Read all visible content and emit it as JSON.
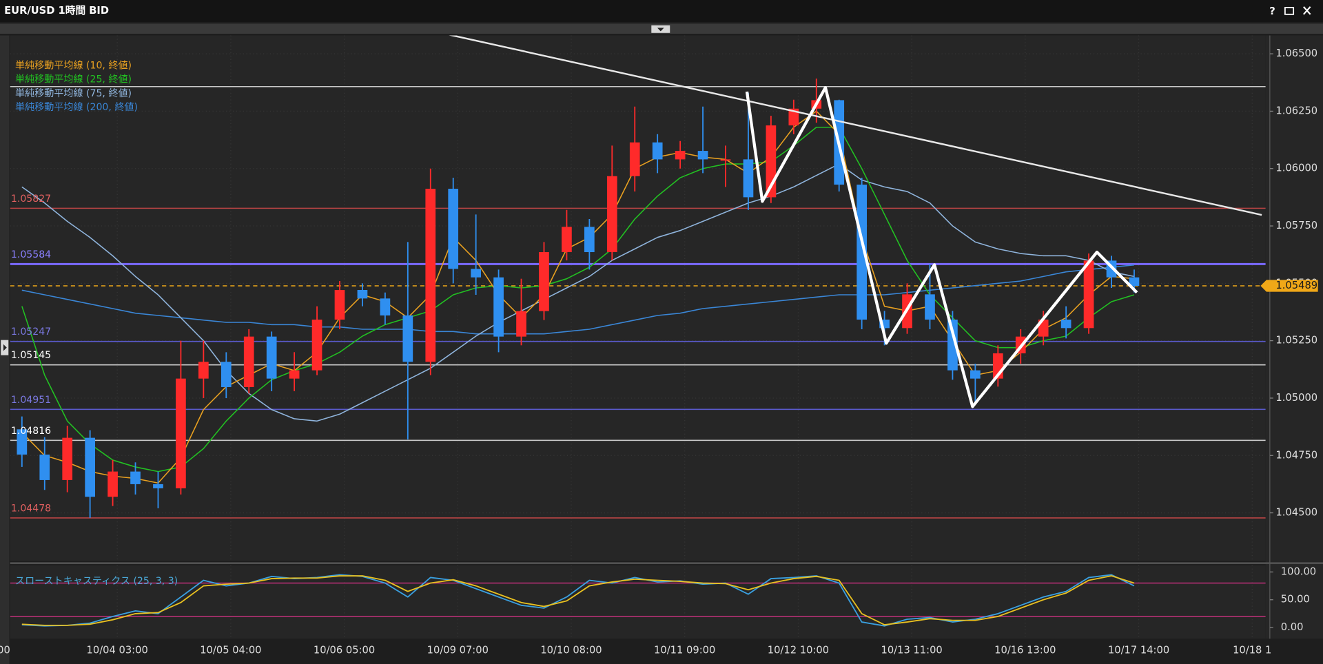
{
  "window_title": "EUR/USD 1時間 BID",
  "help_label": "?",
  "chart_data": [
    {
      "type": "candlestick",
      "xlim": [
        -0.6,
        275.4
      ],
      "ylim": [
        1.0429,
        1.0658
      ],
      "yticks": [
        {
          "value": 1.065,
          "label": "1.06500"
        },
        {
          "value": 1.0625,
          "label": "1.06250"
        },
        {
          "value": 1.06,
          "label": "1.06000"
        },
        {
          "value": 1.0575,
          "label": "1.05750"
        },
        {
          "value": 1.055,
          "label": "1.05500"
        },
        {
          "value": 1.0525,
          "label": "1.05250"
        },
        {
          "value": 1.05,
          "label": "1.05000"
        },
        {
          "value": 1.0475,
          "label": "1.04750"
        },
        {
          "value": 1.045,
          "label": "1.04500"
        }
      ],
      "candles": {
        "up_color": "#ff2a2a",
        "down_color": "#2f8ff0",
        "x": [
          2,
          7,
          12,
          17,
          22,
          27,
          32,
          37,
          42,
          47,
          52,
          57,
          62,
          67,
          72,
          77,
          82,
          87,
          92,
          97,
          102,
          107,
          112,
          117,
          122,
          127,
          132,
          137,
          142,
          147,
          152,
          157,
          162,
          167,
          172,
          177,
          182,
          187,
          192,
          197,
          202,
          207,
          212,
          217,
          222,
          227,
          232,
          237,
          242,
          247
        ],
        "open": [
          1.04864,
          1.04754,
          1.04643,
          1.04827,
          1.0457,
          1.0468,
          1.04625,
          1.04607,
          1.05085,
          1.05158,
          1.05048,
          1.05268,
          1.05085,
          1.05121,
          1.05342,
          1.05471,
          1.05434,
          1.0536,
          1.05158,
          1.05912,
          1.05563,
          1.05526,
          1.05268,
          1.05379,
          1.05636,
          1.05746,
          1.05636,
          1.05967,
          1.06114,
          1.0604,
          1.06077,
          1.0604,
          1.0604,
          1.05875,
          1.06188,
          1.06261,
          1.06298,
          1.0593,
          1.05342,
          1.05305,
          1.05452,
          1.05342,
          1.05121,
          1.05085,
          1.05195,
          1.05268,
          1.05342,
          1.05305,
          1.05599,
          1.05526
        ],
        "high": [
          1.0492,
          1.0483,
          1.0488,
          1.0486,
          1.0473,
          1.0472,
          1.0468,
          1.0525,
          1.0525,
          1.052,
          1.053,
          1.0529,
          1.052,
          1.054,
          1.0551,
          1.055,
          1.0546,
          1.0568,
          1.06,
          1.0596,
          1.058,
          1.0556,
          1.0552,
          1.0568,
          1.0582,
          1.0578,
          1.061,
          1.0627,
          1.0615,
          1.0612,
          1.0627,
          1.061,
          1.0633,
          1.0623,
          1.063,
          1.06392,
          1.063,
          1.0596,
          1.0538,
          1.055,
          1.05584,
          1.0538,
          1.0515,
          1.0523,
          1.053,
          1.0538,
          1.054,
          1.0563,
          1.0562,
          1.0556
        ],
        "low": [
          1.047,
          1.046,
          1.0459,
          1.04478,
          1.0453,
          1.0458,
          1.0452,
          1.0458,
          1.05,
          1.05,
          1.0502,
          1.0503,
          1.0503,
          1.051,
          1.053,
          1.054,
          1.0532,
          1.0482,
          1.051,
          1.055,
          1.0545,
          1.052,
          1.0523,
          1.0534,
          1.056,
          1.0556,
          1.056,
          1.059,
          1.0598,
          1.06,
          1.0598,
          1.0592,
          1.0582,
          1.0585,
          1.0615,
          1.062,
          1.059,
          1.053,
          1.0523,
          1.0528,
          1.053,
          1.0508,
          1.0498,
          1.0505,
          1.0515,
          1.0523,
          1.0526,
          1.0528,
          1.0548,
          1.0546
        ],
        "close": [
          1.04754,
          1.04643,
          1.04827,
          1.0457,
          1.0468,
          1.04625,
          1.04607,
          1.05085,
          1.05158,
          1.05048,
          1.05268,
          1.05085,
          1.05121,
          1.05342,
          1.05471,
          1.05434,
          1.0536,
          1.05158,
          1.05912,
          1.05563,
          1.05526,
          1.05268,
          1.05379,
          1.05636,
          1.05746,
          1.05636,
          1.05967,
          1.06114,
          1.0604,
          1.06077,
          1.0604,
          1.0604,
          1.05875,
          1.06188,
          1.06261,
          1.06298,
          1.0593,
          1.05342,
          1.05305,
          1.05452,
          1.05342,
          1.05121,
          1.05085,
          1.05195,
          1.05268,
          1.05342,
          1.05305,
          1.05599,
          1.05526,
          1.05489
        ]
      },
      "series": [
        {
          "name": "単純移動平均線 (10, 終値)",
          "color": "#e8a020",
          "values": [
            1.0485,
            1.0475,
            1.0472,
            1.0468,
            1.0466,
            1.0465,
            1.0463,
            1.0474,
            1.0495,
            1.0505,
            1.051,
            1.0515,
            1.0512,
            1.052,
            1.0535,
            1.0545,
            1.0542,
            1.0535,
            1.0545,
            1.057,
            1.056,
            1.0545,
            1.0535,
            1.0545,
            1.0565,
            1.057,
            1.058,
            1.06,
            1.0605,
            1.0607,
            1.0605,
            1.0604,
            1.0598,
            1.0605,
            1.0618,
            1.0625,
            1.0615,
            1.057,
            1.054,
            1.0538,
            1.054,
            1.0525,
            1.051,
            1.0512,
            1.052,
            1.053,
            1.0535,
            1.0545,
            1.0553,
            1.0552
          ]
        },
        {
          "name": "単純移動平均線 (25, 終値)",
          "color": "#22c022",
          "values": [
            1.054,
            1.051,
            1.049,
            1.048,
            1.0473,
            1.047,
            1.0468,
            1.047,
            1.0478,
            1.049,
            1.05,
            1.0508,
            1.0512,
            1.0515,
            1.052,
            1.0527,
            1.0532,
            1.0535,
            1.0538,
            1.0545,
            1.0548,
            1.0549,
            1.0548,
            1.0549,
            1.0552,
            1.0557,
            1.0565,
            1.0578,
            1.0588,
            1.0596,
            1.06,
            1.0602,
            1.0602,
            1.0603,
            1.061,
            1.0618,
            1.0618,
            1.06,
            1.058,
            1.056,
            1.0545,
            1.0535,
            1.0525,
            1.0522,
            1.0522,
            1.0525,
            1.0527,
            1.0535,
            1.0542,
            1.0545
          ]
        },
        {
          "name": "単純移動平均線 (75, 終値)",
          "color": "#8fb4dc",
          "values": [
            1.0592,
            1.0585,
            1.0577,
            1.057,
            1.0562,
            1.0553,
            1.0545,
            1.0535,
            1.0525,
            1.0512,
            1.0502,
            1.0495,
            1.0491,
            1.049,
            1.0493,
            1.0498,
            1.0503,
            1.0508,
            1.0513,
            1.052,
            1.0527,
            1.0533,
            1.0538,
            1.0543,
            1.0548,
            1.0553,
            1.056,
            1.0565,
            1.057,
            1.0573,
            1.0577,
            1.0581,
            1.0585,
            1.0588,
            1.0592,
            1.0597,
            1.0602,
            1.0595,
            1.0592,
            1.059,
            1.0585,
            1.0575,
            1.0568,
            1.0565,
            1.0563,
            1.0562,
            1.0562,
            1.056,
            1.0555,
            1.0553
          ]
        },
        {
          "name": "単純移動平均線 (200, 終値)",
          "color": "#3a86d6",
          "values": [
            1.0547,
            1.0545,
            1.0543,
            1.0541,
            1.0539,
            1.0537,
            1.0536,
            1.0535,
            1.0534,
            1.0533,
            1.0533,
            1.0532,
            1.0532,
            1.0531,
            1.0531,
            1.053,
            1.053,
            1.053,
            1.0529,
            1.0529,
            1.0528,
            1.0528,
            1.0528,
            1.0528,
            1.0529,
            1.053,
            1.0532,
            1.0534,
            1.0536,
            1.0537,
            1.0539,
            1.054,
            1.0541,
            1.0542,
            1.0543,
            1.0544,
            1.0545,
            1.0545,
            1.0545,
            1.0546,
            1.0547,
            1.0548,
            1.0549,
            1.055,
            1.0551,
            1.0553,
            1.0555,
            1.0556,
            1.0557,
            1.0558
          ]
        }
      ],
      "levels": [
        {
          "value": 1.06357,
          "color": "#c8c8c8"
        },
        {
          "value": 1.05827,
          "color": "#b84444",
          "label_color": "#e06060"
        },
        {
          "value": 1.05584,
          "color": "#7a6aff",
          "label_color": "#8a80ff"
        },
        {
          "value": 1.05247,
          "color": "#5a5acc",
          "label_color": "#7a78e0"
        },
        {
          "value": 1.05145,
          "color": "#c8c8c8",
          "label_color": "#ffffff"
        },
        {
          "value": 1.04951,
          "color": "#5a5acc",
          "label_color": "#7a78e0"
        },
        {
          "value": 1.04816,
          "color": "#c8c8c8",
          "label_color": "#ffffff"
        },
        {
          "value": 1.04478,
          "color": "#b84444",
          "label_color": "#e06060"
        }
      ],
      "current_price": {
        "value": 1.05489,
        "color": "#f0a818"
      },
      "trendline": {
        "x": [
          95.7,
          275.1
        ],
        "y": [
          1.06585,
          1.05798
        ],
        "color": "#e8e8e8"
      },
      "zigzag": {
        "x": [
          161.7,
          165.1,
          179.0,
          192.4,
          203.0,
          211.4,
          238.8,
          247.6
        ],
        "y": [
          1.06335,
          1.05857,
          1.06353,
          1.05239,
          1.05581,
          1.04963,
          1.05636,
          1.0546
        ],
        "color": "#ffffff"
      }
    },
    {
      "type": "line",
      "name": "スローストキャスティクス (25, 3, 3)",
      "xlim": [
        -0.6,
        275.4
      ],
      "ylim": [
        -20,
        112
      ],
      "yticks": [
        {
          "value": 0,
          "label": "0.00"
        },
        {
          "value": 50,
          "label": "50.00"
        },
        {
          "value": 100,
          "label": "100.00"
        }
      ],
      "levels": [
        80,
        20
      ],
      "level_color": "#c0307a",
      "xticks": [
        {
          "value": -2,
          "label": "00"
        },
        {
          "value": 23,
          "label": "10/04 03:00"
        },
        {
          "value": 48,
          "label": "10/05 04:00"
        },
        {
          "value": 73,
          "label": "10/06 05:00"
        },
        {
          "value": 98,
          "label": "10/09 07:00"
        },
        {
          "value": 123,
          "label": "10/10 08:00"
        },
        {
          "value": 148,
          "label": "10/11 09:00"
        },
        {
          "value": 173,
          "label": "10/12 10:00"
        },
        {
          "value": 198,
          "label": "10/13 11:00"
        },
        {
          "value": 223,
          "label": "10/16 13:00"
        },
        {
          "value": 248,
          "label": "10/17 14:00"
        },
        {
          "value": 273,
          "label": "10/18 1"
        }
      ],
      "series": [
        {
          "color": "#3aa0e0",
          "values": [
            5,
            3,
            4,
            8,
            20,
            30,
            25,
            55,
            85,
            75,
            80,
            92,
            88,
            90,
            95,
            92,
            80,
            55,
            90,
            85,
            70,
            55,
            40,
            35,
            55,
            85,
            80,
            90,
            82,
            84,
            78,
            80,
            60,
            88,
            90,
            93,
            80,
            10,
            3,
            15,
            18,
            10,
            15,
            25,
            40,
            55,
            65,
            90,
            95,
            75
          ]
        },
        {
          "color": "#e8c020",
          "values": [
            6,
            4,
            4,
            6,
            14,
            25,
            27,
            45,
            75,
            78,
            80,
            88,
            89,
            89,
            93,
            93,
            85,
            65,
            80,
            86,
            75,
            60,
            45,
            38,
            48,
            75,
            82,
            87,
            85,
            83,
            80,
            79,
            68,
            80,
            88,
            92,
            85,
            25,
            5,
            10,
            16,
            13,
            13,
            20,
            35,
            50,
            62,
            85,
            93,
            80
          ]
        }
      ]
    }
  ]
}
